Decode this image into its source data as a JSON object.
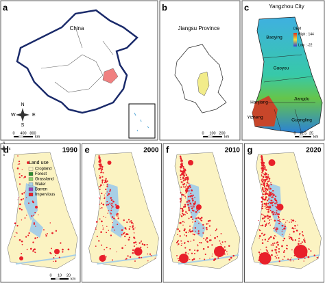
{
  "top_panels": [
    {
      "letter": "a",
      "title": "China",
      "scale": {
        "ticks": [
          "0",
          "400",
          "800"
        ],
        "unit": "km"
      }
    },
    {
      "letter": "b",
      "title": "Jiangsu Province",
      "scale": {
        "ticks": [
          "0",
          "100",
          "200"
        ],
        "unit": "km"
      }
    },
    {
      "letter": "c",
      "title": "Yangzhou City",
      "scale": {
        "ticks": [
          "0",
          "12.5",
          "25"
        ],
        "unit": "km"
      }
    }
  ],
  "compass": {
    "n": "N",
    "s": "S",
    "e": "E",
    "w": "W"
  },
  "dem": {
    "title": "DEM",
    "high": "High : 144",
    "low": "Low : -22",
    "high_color": "#d7301f",
    "low_color": "#2b3fd8"
  },
  "districts": [
    "Baoying",
    "Gaoyou",
    "Jiangdu",
    "Hanjiang",
    "Yizheng",
    "Guangling"
  ],
  "bottom_panels": [
    {
      "letter": "d",
      "year": "1990"
    },
    {
      "letter": "e",
      "year": "2000"
    },
    {
      "letter": "f",
      "year": "2010"
    },
    {
      "letter": "g",
      "year": "2020"
    }
  ],
  "bottom_scale": {
    "ticks": [
      "0",
      "10",
      "20"
    ],
    "unit": "km"
  },
  "legend": {
    "title": "Land use",
    "items": [
      {
        "label": "Cropland",
        "color": "#fbf3c2"
      },
      {
        "label": "Forest",
        "color": "#2e8b2e"
      },
      {
        "label": "Grassland",
        "color": "#8fd36b"
      },
      {
        "label": "Water",
        "color": "#a8cfe6"
      },
      {
        "label": "Barren",
        "color": "#9b3fb5"
      },
      {
        "label": "Impervious",
        "color": "#e8202a"
      }
    ]
  }
}
